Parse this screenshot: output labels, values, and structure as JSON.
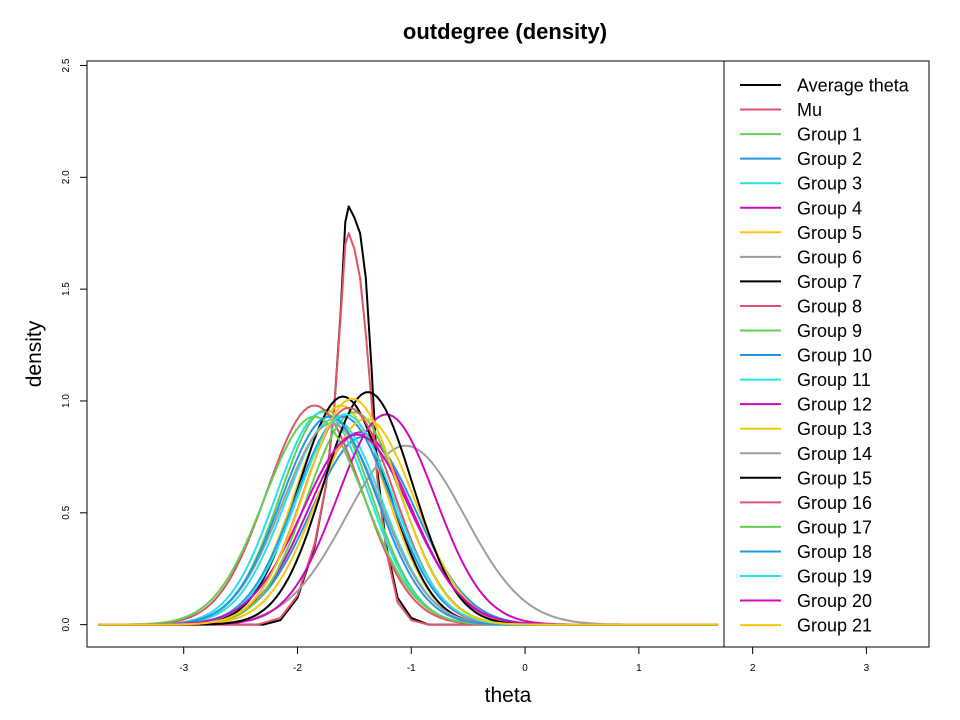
{
  "chart_data": {
    "type": "line",
    "title": "outdegree (density)",
    "xlabel": "theta",
    "ylabel": "density",
    "xlim": [
      -3.85,
      3.55
    ],
    "ylim": [
      -0.1,
      2.52
    ],
    "xticks": [
      "-3",
      "-2",
      "-1",
      "0",
      "1",
      "2",
      "3"
    ],
    "yticks": [
      "0.0",
      "0.5",
      "1.0",
      "1.5",
      "2.0",
      "2.5"
    ],
    "legend_position": "right-inside",
    "grid": false,
    "series": [
      {
        "name": "Average theta",
        "color": "#000000",
        "points": [
          [
            -2.3,
            0
          ],
          [
            -2.15,
            0.02
          ],
          [
            -2.0,
            0.12
          ],
          [
            -1.85,
            0.35
          ],
          [
            -1.75,
            0.62
          ],
          [
            -1.68,
            0.95
          ],
          [
            -1.62,
            1.4
          ],
          [
            -1.58,
            1.8
          ],
          [
            -1.55,
            1.87
          ],
          [
            -1.5,
            1.82
          ],
          [
            -1.45,
            1.75
          ],
          [
            -1.4,
            1.55
          ],
          [
            -1.35,
            1.15
          ],
          [
            -1.3,
            0.7
          ],
          [
            -1.22,
            0.35
          ],
          [
            -1.12,
            0.12
          ],
          [
            -1.0,
            0.03
          ],
          [
            -0.85,
            0
          ]
        ]
      },
      {
        "name": "Mu",
        "color": "#DF536B",
        "points": [
          [
            -2.35,
            0
          ],
          [
            -2.15,
            0.03
          ],
          [
            -2.0,
            0.13
          ],
          [
            -1.85,
            0.36
          ],
          [
            -1.75,
            0.62
          ],
          [
            -1.68,
            0.95
          ],
          [
            -1.62,
            1.38
          ],
          [
            -1.58,
            1.7
          ],
          [
            -1.55,
            1.75
          ],
          [
            -1.5,
            1.68
          ],
          [
            -1.45,
            1.55
          ],
          [
            -1.4,
            1.3
          ],
          [
            -1.35,
            1.0
          ],
          [
            -1.3,
            0.66
          ],
          [
            -1.22,
            0.33
          ],
          [
            -1.12,
            0.1
          ],
          [
            -1.0,
            0.02
          ],
          [
            -0.85,
            0
          ]
        ]
      },
      {
        "name": "Group 1",
        "color": "#61D04F",
        "mu": -1.75,
        "sd": 0.4,
        "peak": 0.96
      },
      {
        "name": "Group 2",
        "color": "#2297E6",
        "mu": -1.42,
        "sd": 0.46,
        "peak": 0.84
      },
      {
        "name": "Group 3",
        "color": "#28E2E5",
        "mu": -1.78,
        "sd": 0.41,
        "peak": 0.95
      },
      {
        "name": "Group 4",
        "color": "#CD0BBC",
        "mu": -1.45,
        "sd": 0.45,
        "peak": 0.86
      },
      {
        "name": "Group 5",
        "color": "#F5C710",
        "mu": -1.62,
        "sd": 0.4,
        "peak": 0.98
      },
      {
        "name": "Group 6",
        "color": "#9E9E9E",
        "mu": -1.05,
        "sd": 0.52,
        "peak": 0.8
      },
      {
        "name": "Group 7",
        "color": "#000000",
        "mu": -1.6,
        "sd": 0.39,
        "peak": 1.02
      },
      {
        "name": "Group 8",
        "color": "#DF536B",
        "mu": -1.85,
        "sd": 0.42,
        "peak": 0.98
      },
      {
        "name": "Group 9",
        "color": "#61D04F",
        "mu": -1.5,
        "sd": 0.41,
        "peak": 0.95
      },
      {
        "name": "Group 10",
        "color": "#2297E6",
        "mu": -1.6,
        "sd": 0.42,
        "peak": 0.93
      },
      {
        "name": "Group 11",
        "color": "#28E2E5",
        "mu": -1.68,
        "sd": 0.42,
        "peak": 0.92
      },
      {
        "name": "Group 12",
        "color": "#CD0BBC",
        "mu": -1.22,
        "sd": 0.43,
        "peak": 0.94
      },
      {
        "name": "Group 13",
        "color": "#F5C710",
        "mu": -1.4,
        "sd": 0.43,
        "peak": 0.92
      },
      {
        "name": "Group 14",
        "color": "#9E9E9E",
        "mu": -1.7,
        "sd": 0.43,
        "peak": 0.9
      },
      {
        "name": "Group 15",
        "color": "#000000",
        "mu": -1.38,
        "sd": 0.39,
        "peak": 1.04
      },
      {
        "name": "Group 16",
        "color": "#DF536B",
        "mu": -1.55,
        "sd": 0.4,
        "peak": 0.97
      },
      {
        "name": "Group 17",
        "color": "#61D04F",
        "mu": -1.85,
        "sd": 0.44,
        "peak": 0.93
      },
      {
        "name": "Group 18",
        "color": "#2297E6",
        "mu": -1.72,
        "sd": 0.42,
        "peak": 0.93
      },
      {
        "name": "Group 19",
        "color": "#28E2E5",
        "mu": -1.58,
        "sd": 0.42,
        "peak": 0.94
      },
      {
        "name": "Group 20",
        "color": "#CD0BBC",
        "mu": -1.48,
        "sd": 0.47,
        "peak": 0.85
      },
      {
        "name": "Group 21",
        "color": "#F5C710",
        "mu": -1.52,
        "sd": 0.41,
        "peak": 1.01
      }
    ]
  }
}
